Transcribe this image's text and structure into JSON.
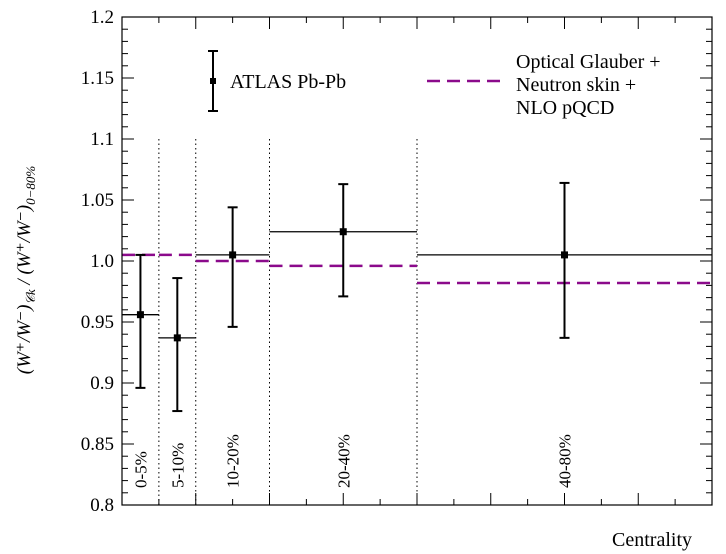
{
  "chart_data": {
    "type": "line",
    "xlabel": "Centrality",
    "ylabel": "(W+/W−)_Ck / (W+/W−)_0−80%",
    "ylim": [
      0.8,
      1.2
    ],
    "yticks": [
      "0.8",
      "0.85",
      "0.9",
      "0.95",
      "1.0",
      "1.05",
      "1.1",
      "1.15",
      "1.2"
    ],
    "categories": [
      "0-5%",
      "5-10%",
      "10-20%",
      "20-40%",
      "40-80%"
    ],
    "bins": [
      {
        "label": "0-5%",
        "from": 0,
        "to": 5
      },
      {
        "label": "5-10%",
        "from": 5,
        "to": 10
      },
      {
        "label": "10-20%",
        "from": 10,
        "to": 20
      },
      {
        "label": "20-40%",
        "from": 20,
        "to": 40
      },
      {
        "label": "40-80%",
        "from": 40,
        "to": 80
      }
    ],
    "series": [
      {
        "name": "ATLAS Pb-Pb",
        "kind": "points-with-errors",
        "color": "#000000",
        "values": [
          0.956,
          0.937,
          1.005,
          1.024,
          1.005
        ],
        "err_low": [
          0.896,
          0.877,
          0.946,
          0.971,
          0.937
        ],
        "err_high": [
          1.005,
          0.986,
          1.044,
          1.063,
          1.064
        ]
      },
      {
        "name": "Optical Glauber + Neutron skin + NLO pQCD",
        "legend_lines": [
          "Optical Glauber +",
          "Neutron skin +",
          "NLO pQCD"
        ],
        "kind": "dashed-steps",
        "color": "#8b0a8b",
        "values": [
          1.005,
          1.005,
          1.0,
          0.996,
          0.982
        ]
      }
    ],
    "legend_position": "top"
  }
}
